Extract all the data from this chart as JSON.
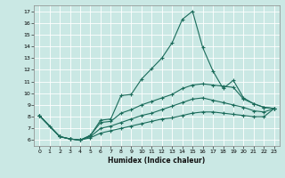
{
  "xlabel": "Humidex (Indice chaleur)",
  "bg_color": "#cae8e4",
  "line_color": "#1a6b5a",
  "grid_color": "#b8d8d4",
  "xlim": [
    -0.5,
    23.5
  ],
  "ylim": [
    5.5,
    17.5
  ],
  "xticks": [
    0,
    1,
    2,
    3,
    4,
    5,
    6,
    7,
    8,
    9,
    10,
    11,
    12,
    13,
    14,
    15,
    16,
    17,
    18,
    19,
    20,
    21,
    22,
    23
  ],
  "yticks": [
    6,
    7,
    8,
    9,
    10,
    11,
    12,
    13,
    14,
    15,
    16,
    17
  ],
  "lines": [
    {
      "x": [
        0,
        1,
        2,
        3,
        4,
        5,
        6,
        7,
        8,
        9,
        10,
        11,
        12,
        13,
        14,
        15,
        16,
        17,
        18,
        19,
        20,
        21,
        22,
        23
      ],
      "y": [
        8.1,
        7.2,
        6.3,
        6.1,
        6.0,
        6.4,
        7.7,
        7.8,
        9.8,
        9.9,
        11.2,
        12.1,
        13.0,
        14.3,
        16.3,
        17.0,
        13.9,
        11.9,
        10.4,
        11.1,
        9.6,
        9.1,
        8.8,
        8.7
      ]
    },
    {
      "x": [
        0,
        2,
        3,
        4,
        5,
        6,
        7,
        8,
        9,
        10,
        11,
        12,
        13,
        14,
        15,
        16,
        17,
        18,
        19,
        20,
        21,
        22,
        23
      ],
      "y": [
        8.1,
        6.3,
        6.1,
        6.0,
        6.4,
        7.5,
        7.6,
        8.3,
        8.6,
        9.0,
        9.3,
        9.6,
        9.9,
        10.4,
        10.7,
        10.8,
        10.7,
        10.6,
        10.5,
        9.5,
        9.1,
        8.8,
        8.7
      ]
    },
    {
      "x": [
        0,
        2,
        3,
        4,
        5,
        6,
        7,
        8,
        9,
        10,
        11,
        12,
        13,
        14,
        15,
        16,
        17,
        18,
        19,
        20,
        21,
        22,
        23
      ],
      "y": [
        8.1,
        6.3,
        6.1,
        6.0,
        6.3,
        7.0,
        7.2,
        7.5,
        7.8,
        8.1,
        8.3,
        8.6,
        8.9,
        9.2,
        9.5,
        9.6,
        9.4,
        9.2,
        9.0,
        8.8,
        8.5,
        8.4,
        8.7
      ]
    },
    {
      "x": [
        0,
        2,
        3,
        4,
        5,
        6,
        7,
        8,
        9,
        10,
        11,
        12,
        13,
        14,
        15,
        16,
        17,
        18,
        19,
        20,
        21,
        22,
        23
      ],
      "y": [
        8.1,
        6.3,
        6.1,
        6.0,
        6.2,
        6.6,
        6.8,
        7.0,
        7.2,
        7.4,
        7.6,
        7.8,
        7.9,
        8.1,
        8.3,
        8.4,
        8.4,
        8.3,
        8.2,
        8.1,
        8.0,
        8.0,
        8.7
      ]
    }
  ]
}
